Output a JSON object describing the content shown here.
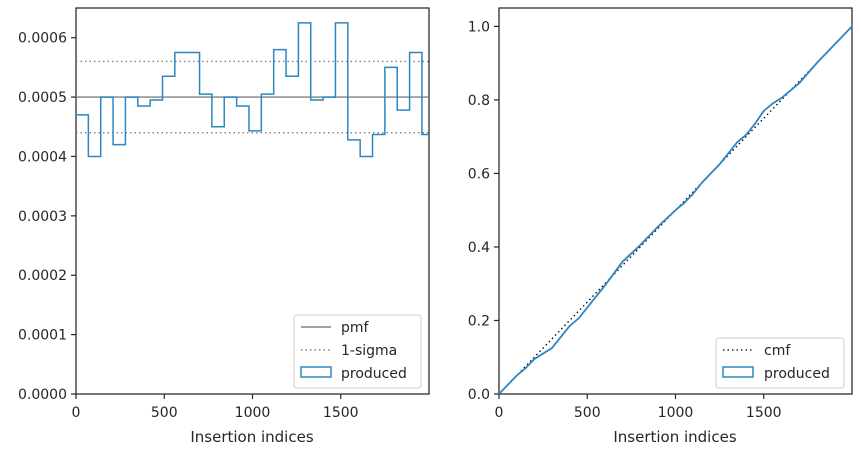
{
  "chart_data": [
    {
      "type": "histogram",
      "xlabel": "Insertion indices",
      "ylabel": "",
      "xlim": [
        0,
        2000
      ],
      "ylim": [
        0,
        0.00065
      ],
      "xticks": [
        0,
        500,
        1000,
        1500
      ],
      "xtick_labels": [
        "0",
        "500",
        "1000",
        "1500"
      ],
      "yticks": [
        0,
        0.0001,
        0.0002,
        0.0003,
        0.0004,
        0.0005,
        0.0006
      ],
      "ytick_labels": [
        "0.0000",
        "0.0001",
        "0.0002",
        "0.0003",
        "0.0004",
        "0.0005",
        "0.0006"
      ],
      "pmf": 0.0005,
      "sigma_band": [
        0.00044,
        0.00056
      ],
      "bin_edges": [
        0,
        70,
        140,
        210,
        280,
        350,
        420,
        490,
        560,
        700,
        770,
        840,
        910,
        980,
        1050,
        1120,
        1190,
        1260,
        1330,
        1400,
        1470,
        1540,
        1610,
        1680,
        1750,
        1820,
        1890,
        1960,
        2000
      ],
      "bin_values": [
        0.00047,
        0.0004,
        0.0005,
        0.00042,
        0.0005,
        0.000485,
        0.000495,
        0.000535,
        0.000575,
        0.000505,
        0.00045,
        0.0005,
        0.000485,
        0.000443,
        0.000505,
        0.00058,
        0.000535,
        0.000625,
        0.000495,
        0.0005,
        0.000625,
        0.000428,
        0.0004,
        0.000437,
        0.00055,
        0.000478,
        0.000575,
        0.000437
      ],
      "legend": {
        "position": "lower right",
        "entries": [
          {
            "label": "pmf",
            "style": "solid",
            "color": "#808080"
          },
          {
            "label": "1-sigma",
            "style": "dotted",
            "color": "#808080"
          },
          {
            "label": "produced",
            "style": "step",
            "color": "#2e86c1"
          }
        ]
      }
    },
    {
      "type": "line",
      "xlabel": "Insertion indices",
      "ylabel": "",
      "xlim": [
        0,
        2000
      ],
      "ylim": [
        0,
        1.05
      ],
      "xticks": [
        0,
        500,
        1000,
        1500
      ],
      "xtick_labels": [
        "0",
        "500",
        "1000",
        "1500"
      ],
      "yticks": [
        0,
        0.2,
        0.4,
        0.6,
        0.8,
        1.0
      ],
      "ytick_labels": [
        "0.0",
        "0.2",
        "0.4",
        "0.6",
        "0.8",
        "1.0"
      ],
      "cmf": {
        "x": [
          0,
          2000
        ],
        "y": [
          0,
          1.0
        ]
      },
      "produced": {
        "x": [
          0,
          100,
          150,
          200,
          250,
          300,
          350,
          400,
          450,
          500,
          600,
          700,
          800,
          900,
          1000,
          1050,
          1100,
          1150,
          1200,
          1250,
          1300,
          1350,
          1400,
          1450,
          1500,
          1550,
          1600,
          1700,
          1800,
          1900,
          2000
        ],
        "y": [
          0,
          0.05,
          0.07,
          0.095,
          0.11,
          0.125,
          0.155,
          0.185,
          0.205,
          0.235,
          0.295,
          0.36,
          0.405,
          0.455,
          0.5,
          0.52,
          0.545,
          0.575,
          0.6,
          0.625,
          0.655,
          0.685,
          0.705,
          0.735,
          0.77,
          0.79,
          0.805,
          0.845,
          0.9,
          0.95,
          1.0
        ]
      },
      "legend": {
        "position": "lower right",
        "entries": [
          {
            "label": "cmf",
            "style": "dotted",
            "color": "#000000"
          },
          {
            "label": "produced",
            "style": "step",
            "color": "#2e86c1"
          }
        ]
      }
    }
  ]
}
